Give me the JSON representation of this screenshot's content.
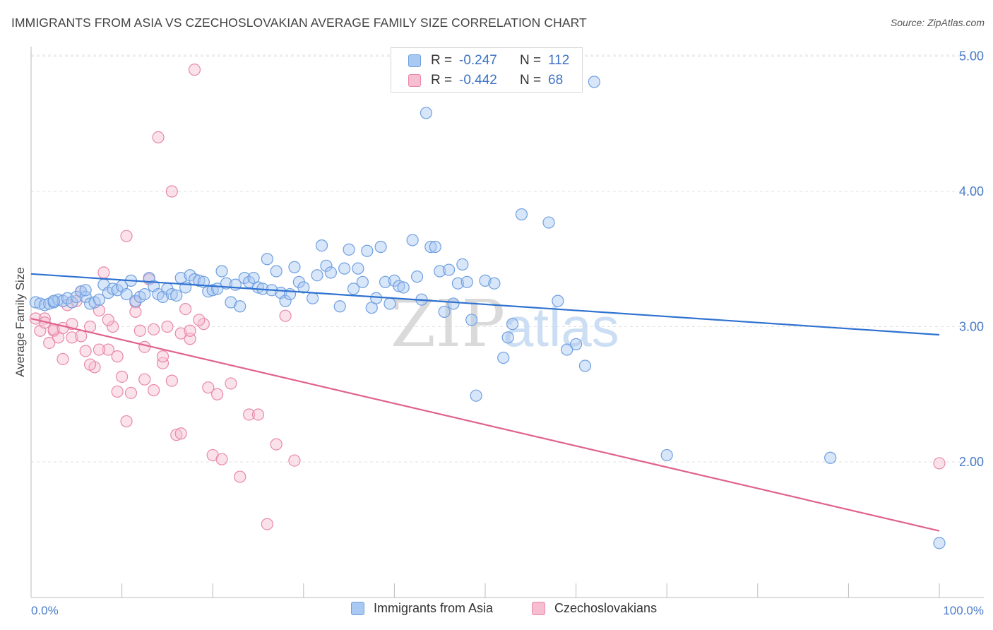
{
  "header": {
    "title": "IMMIGRANTS FROM ASIA VS CZECHOSLOVAKIAN AVERAGE FAMILY SIZE CORRELATION CHART",
    "source": "Source: ZipAtlas.com"
  },
  "legend": {
    "rows": [
      {
        "r_label": "R =",
        "r_value": "-0.247",
        "n_label": "N =",
        "n_value": "112",
        "color": "#a9c8f2",
        "border": "#6f9fe0"
      },
      {
        "r_label": "R =",
        "r_value": "-0.442",
        "n_label": "N =",
        "n_value": "68",
        "color": "#f6bed0",
        "border": "#e888a8"
      }
    ]
  },
  "bottom_legend": {
    "items": [
      {
        "label": "Immigrants from Asia",
        "color": "#a9c8f2",
        "border": "#6f9fe0"
      },
      {
        "label": "Czechoslovakians",
        "color": "#f6bed0",
        "border": "#e888a8"
      }
    ]
  },
  "watermark": {
    "zip": "ZIP",
    "atlas": "atlas"
  },
  "chart_data": {
    "type": "scatter",
    "title": "IMMIGRANTS FROM ASIA VS CZECHOSLOVAKIAN AVERAGE FAMILY SIZE CORRELATION CHART",
    "xlabel": "",
    "ylabel": "Average Family Size",
    "x_tick_labels": [
      "0.0%",
      "100.0%"
    ],
    "y_tick_labels": [
      "2.00",
      "3.00",
      "4.00",
      "5.00"
    ],
    "y_ticks": [
      2,
      3,
      4,
      5
    ],
    "xlim": [
      0,
      100
    ],
    "ylim": [
      1.1,
      5.3
    ],
    "grid": true,
    "legend_position": "top-center",
    "series": [
      {
        "name": "Immigrants from Asia",
        "color": "#6f9fe0",
        "fill": "rgba(169,200,242,0.45)",
        "line_color": "#2f72d0",
        "trend": {
          "x": [
            0,
            100
          ],
          "y": [
            3.39,
            2.94
          ]
        },
        "points": [
          [
            0.5,
            3.18
          ],
          [
            1.0,
            3.17
          ],
          [
            1.5,
            3.16
          ],
          [
            2.0,
            3.17
          ],
          [
            2.5,
            3.18
          ],
          [
            3.0,
            3.2
          ],
          [
            3.5,
            3.19
          ],
          [
            4.0,
            3.21
          ],
          [
            4.5,
            3.18
          ],
          [
            5.0,
            3.22
          ],
          [
            5.5,
            3.26
          ],
          [
            6.0,
            3.22
          ],
          [
            6.5,
            3.17
          ],
          [
            7.0,
            3.18
          ],
          [
            7.5,
            3.2
          ],
          [
            8.0,
            3.31
          ],
          [
            8.5,
            3.25
          ],
          [
            9.0,
            3.28
          ],
          [
            9.5,
            3.27
          ],
          [
            10.0,
            3.3
          ],
          [
            10.5,
            3.24
          ],
          [
            11.0,
            3.34
          ],
          [
            11.5,
            3.19
          ],
          [
            12.0,
            3.22
          ],
          [
            12.5,
            3.24
          ],
          [
            13.0,
            3.36
          ],
          [
            13.5,
            3.3
          ],
          [
            14.0,
            3.24
          ],
          [
            14.5,
            3.22
          ],
          [
            15.0,
            3.28
          ],
          [
            15.5,
            3.24
          ],
          [
            16.0,
            3.23
          ],
          [
            16.5,
            3.36
          ],
          [
            17.0,
            3.29
          ],
          [
            17.5,
            3.38
          ],
          [
            18.0,
            3.35
          ],
          [
            18.5,
            3.34
          ],
          [
            19.0,
            3.33
          ],
          [
            19.5,
            3.26
          ],
          [
            20.0,
            3.27
          ],
          [
            20.5,
            3.28
          ],
          [
            21.0,
            3.41
          ],
          [
            21.5,
            3.32
          ],
          [
            22.0,
            3.18
          ],
          [
            22.5,
            3.31
          ],
          [
            23.0,
            3.15
          ],
          [
            23.5,
            3.36
          ],
          [
            24.0,
            3.33
          ],
          [
            24.5,
            3.36
          ],
          [
            25.0,
            3.29
          ],
          [
            25.5,
            3.28
          ],
          [
            26.0,
            3.5
          ],
          [
            26.5,
            3.27
          ],
          [
            27.0,
            3.41
          ],
          [
            27.5,
            3.25
          ],
          [
            28.0,
            3.19
          ],
          [
            28.5,
            3.24
          ],
          [
            29.0,
            3.44
          ],
          [
            29.5,
            3.33
          ],
          [
            30.0,
            3.29
          ],
          [
            31.0,
            3.21
          ],
          [
            31.5,
            3.38
          ],
          [
            32.0,
            3.6
          ],
          [
            32.5,
            3.45
          ],
          [
            33.0,
            3.4
          ],
          [
            34.0,
            3.15
          ],
          [
            34.5,
            3.43
          ],
          [
            35.0,
            3.57
          ],
          [
            35.5,
            3.28
          ],
          [
            36.0,
            3.43
          ],
          [
            36.5,
            3.33
          ],
          [
            37.0,
            3.56
          ],
          [
            37.5,
            3.14
          ],
          [
            38.0,
            3.21
          ],
          [
            38.5,
            3.59
          ],
          [
            39.0,
            3.33
          ],
          [
            39.5,
            3.17
          ],
          [
            40.0,
            3.34
          ],
          [
            40.5,
            3.3
          ],
          [
            41.0,
            3.29
          ],
          [
            42.0,
            3.64
          ],
          [
            42.5,
            3.37
          ],
          [
            43.0,
            3.2
          ],
          [
            43.5,
            4.58
          ],
          [
            44.0,
            3.59
          ],
          [
            44.5,
            3.59
          ],
          [
            45.0,
            3.41
          ],
          [
            45.5,
            3.11
          ],
          [
            46.0,
            3.42
          ],
          [
            46.5,
            3.17
          ],
          [
            47.0,
            3.32
          ],
          [
            47.5,
            3.46
          ],
          [
            48.0,
            3.33
          ],
          [
            48.5,
            3.05
          ],
          [
            49.0,
            2.49
          ],
          [
            50.0,
            3.34
          ],
          [
            51.0,
            3.32
          ],
          [
            52.0,
            2.77
          ],
          [
            52.5,
            2.92
          ],
          [
            53.0,
            3.02
          ],
          [
            54.0,
            3.83
          ],
          [
            57.0,
            3.77
          ],
          [
            58.0,
            3.19
          ],
          [
            59.0,
            2.83
          ],
          [
            60.0,
            2.87
          ],
          [
            61.0,
            2.71
          ],
          [
            62.0,
            4.81
          ],
          [
            70.0,
            2.05
          ],
          [
            88.0,
            2.03
          ],
          [
            100.0,
            1.4
          ],
          [
            2.5,
            3.19
          ],
          [
            6.0,
            3.27
          ]
        ]
      },
      {
        "name": "Czechoslovakians",
        "color": "#e888a8",
        "fill": "rgba(246,190,208,0.45)",
        "line_color": "#e0628c",
        "trend": {
          "x": [
            0,
            100
          ],
          "y": [
            3.06,
            1.49
          ]
        },
        "points": [
          [
            0.5,
            3.06
          ],
          [
            1.0,
            2.97
          ],
          [
            1.5,
            3.06
          ],
          [
            2.0,
            2.88
          ],
          [
            2.5,
            2.97
          ],
          [
            3.0,
            2.92
          ],
          [
            3.5,
            2.76
          ],
          [
            4.0,
            3.16
          ],
          [
            4.5,
            2.92
          ],
          [
            5.0,
            3.19
          ],
          [
            5.5,
            3.26
          ],
          [
            6.0,
            2.82
          ],
          [
            6.5,
            3.0
          ],
          [
            7.0,
            2.7
          ],
          [
            7.5,
            3.12
          ],
          [
            8.0,
            3.4
          ],
          [
            8.5,
            2.83
          ],
          [
            9.0,
            3.0
          ],
          [
            9.5,
            2.78
          ],
          [
            10.0,
            2.63
          ],
          [
            10.5,
            3.67
          ],
          [
            11.0,
            2.51
          ],
          [
            11.5,
            3.18
          ],
          [
            12.0,
            2.97
          ],
          [
            12.5,
            2.85
          ],
          [
            13.0,
            3.35
          ],
          [
            13.5,
            2.53
          ],
          [
            14.0,
            4.4
          ],
          [
            14.5,
            2.73
          ],
          [
            15.0,
            3.0
          ],
          [
            15.5,
            2.6
          ],
          [
            16.0,
            2.2
          ],
          [
            16.5,
            2.21
          ],
          [
            17.0,
            3.13
          ],
          [
            17.5,
            2.91
          ],
          [
            18.0,
            4.9
          ],
          [
            19.0,
            3.02
          ],
          [
            20.0,
            2.05
          ],
          [
            21.0,
            2.02
          ],
          [
            22.0,
            2.58
          ],
          [
            23.0,
            1.89
          ],
          [
            24.0,
            2.35
          ],
          [
            25.0,
            2.35
          ],
          [
            26.0,
            1.54
          ],
          [
            27.0,
            2.13
          ],
          [
            28.0,
            3.08
          ],
          [
            29.0,
            2.01
          ],
          [
            100.0,
            1.99
          ],
          [
            1.5,
            3.03
          ],
          [
            2.5,
            2.98
          ],
          [
            3.5,
            2.99
          ],
          [
            4.5,
            3.02
          ],
          [
            5.5,
            2.93
          ],
          [
            6.5,
            2.72
          ],
          [
            7.5,
            2.83
          ],
          [
            8.5,
            3.05
          ],
          [
            9.5,
            2.52
          ],
          [
            10.5,
            2.3
          ],
          [
            11.5,
            3.11
          ],
          [
            12.5,
            2.61
          ],
          [
            13.5,
            2.98
          ],
          [
            14.5,
            2.78
          ],
          [
            15.5,
            4.0
          ],
          [
            16.5,
            2.95
          ],
          [
            17.5,
            2.97
          ],
          [
            18.5,
            3.05
          ],
          [
            19.5,
            2.55
          ],
          [
            20.5,
            2.5
          ]
        ]
      }
    ]
  }
}
